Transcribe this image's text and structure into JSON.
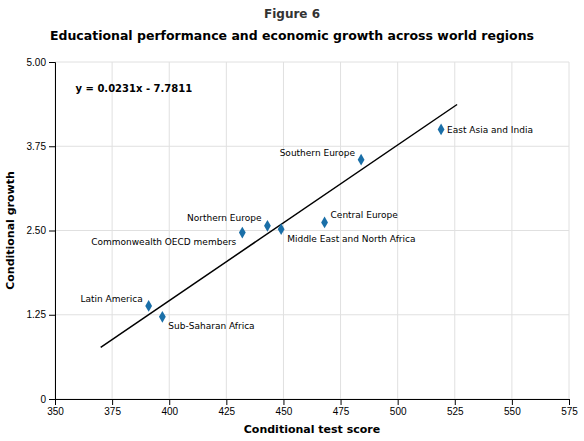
{
  "chart_data": {
    "type": "scatter",
    "title": "Figure 6",
    "subtitle": "Educational performance and economic growth across world regions",
    "x_label": "Conditional test score",
    "y_label": "Conditional growth",
    "annotation": "y = 0.0231x - 7.7811",
    "xlim": [
      350,
      575
    ],
    "ylim": [
      0,
      5.0
    ],
    "xticks": [
      350,
      375,
      400,
      425,
      450,
      475,
      500,
      525,
      550,
      575
    ],
    "yticks": [
      0,
      1.25,
      {
        "value": 2.5,
        "label": "2.50"
      },
      3.75,
      {
        "value": 5,
        "label": "5.00"
      }
    ],
    "grid": true,
    "series": [
      {
        "type": "scatter",
        "marker": "diamond",
        "color": "#1a6fa8",
        "x": [
          391,
          397,
          432,
          443,
          449,
          468,
          484,
          519
        ],
        "values": [
          1.38,
          1.22,
          2.47,
          2.57,
          2.52,
          2.62,
          3.55,
          4.0
        ],
        "labels": [
          "Latin America",
          "Sub-Saharan Africa",
          "Commonwealth OECD members",
          "Northern Europe",
          "Middle East and North Africa",
          "Central Europe",
          "Southern Europe",
          "East Asia and India"
        ]
      },
      {
        "type": "line",
        "line_style": "solid",
        "color": "#000000",
        "x": [
          370,
          526
        ],
        "values": [
          0.7659,
          4.3695
        ]
      }
    ]
  }
}
